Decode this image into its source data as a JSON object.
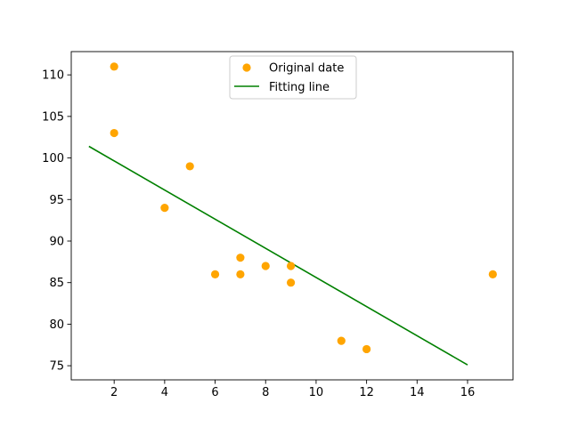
{
  "chart_data": {
    "type": "scatter",
    "title": "",
    "xlabel": "",
    "ylabel": "",
    "xlim": [
      0.3,
      17.8
    ],
    "ylim": [
      73.3,
      112.8
    ],
    "xticks": [
      2,
      4,
      6,
      8,
      10,
      12,
      14,
      16
    ],
    "yticks": [
      75,
      80,
      85,
      90,
      95,
      100,
      105,
      110
    ],
    "grid": false,
    "legend_position": "upper center",
    "series": [
      {
        "name": "Original date",
        "kind": "scatter",
        "color": "#ffa500",
        "x": [
          2,
          2,
          5,
          4,
          6,
          7,
          7,
          8,
          9,
          9,
          11,
          12,
          17
        ],
        "y": [
          111,
          103,
          99,
          94,
          86,
          88,
          86,
          87,
          87,
          85,
          78,
          77,
          86
        ]
      },
      {
        "name": "Fitting line",
        "kind": "line",
        "color": "#008000",
        "x": [
          1,
          16
        ],
        "y": [
          101.4,
          75.1
        ]
      }
    ]
  }
}
